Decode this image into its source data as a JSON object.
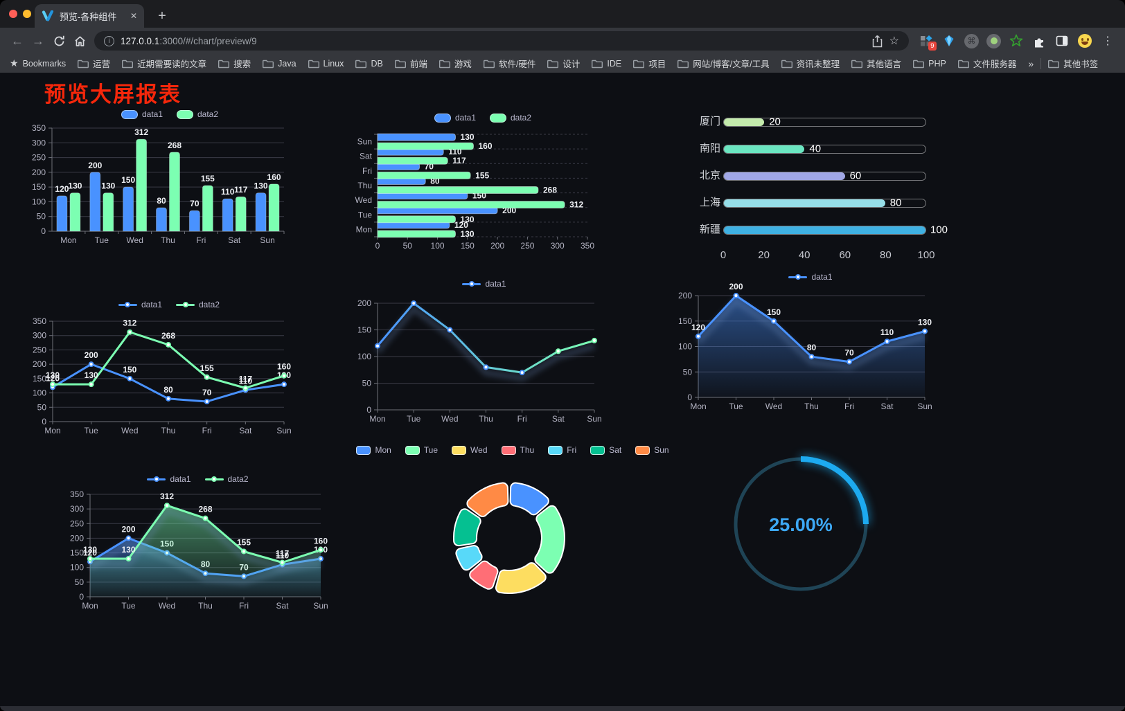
{
  "browser": {
    "tab": {
      "title": "预览-各种组件"
    },
    "url": {
      "host": "127.0.0.1",
      "rest": ":3000/#/chart/preview/9"
    },
    "ext_badge": "9",
    "glyphs": {
      "back": "←",
      "forward": "→",
      "newtab": "+",
      "close": "✕",
      "info": "i",
      "star": "☆",
      "bm_star": "★",
      "kebab": "⋮",
      "command": "⌘"
    },
    "bookmarks": {
      "label": "Bookmarks",
      "folders": [
        "运营",
        "近期需要读的文章",
        "搜索",
        "Java",
        "Linux",
        "DB",
        "前端",
        "游戏",
        "软件/硬件",
        "设计",
        "IDE",
        "项目",
        "网站/博客/文章/工具",
        "资讯未整理",
        "其他语言",
        "PHP",
        "文件服务器"
      ],
      "overflow": "»",
      "other": "其他书签"
    }
  },
  "page": {
    "title": "预览大屏报表",
    "title_color": "#f5270b"
  },
  "chart_data": [
    {
      "id": "bar-grouped",
      "type": "bar",
      "categories": [
        "Mon",
        "Tue",
        "Wed",
        "Thu",
        "Fri",
        "Sat",
        "Sun"
      ],
      "series": [
        {
          "name": "data1",
          "color": "#4992ff",
          "values": [
            120,
            200,
            150,
            80,
            70,
            110,
            130
          ]
        },
        {
          "name": "data2",
          "color": "#7cffb2",
          "values": [
            130,
            130,
            312,
            268,
            155,
            117,
            160
          ]
        }
      ],
      "ylim": [
        0,
        350
      ],
      "ystep": 50,
      "labels": true,
      "legend_position": "top"
    },
    {
      "id": "bar-horizontal",
      "type": "hbar",
      "categories_top_to_bottom": [
        "Sun",
        "Sat",
        "Fri",
        "Thu",
        "Wed",
        "Tue",
        "Mon"
      ],
      "series": [
        {
          "name": "data1",
          "color": "#4992ff",
          "values": [
            130,
            110,
            70,
            80,
            150,
            200,
            120
          ]
        },
        {
          "name": "data2",
          "color": "#7cffb2",
          "values": [
            160,
            117,
            155,
            268,
            312,
            130,
            130
          ]
        }
      ],
      "xlim": [
        0,
        350
      ],
      "xstep": 50,
      "labels": true,
      "legend_position": "top"
    },
    {
      "id": "capsule",
      "type": "capsule",
      "max": 100,
      "xticks": [
        0,
        20,
        40,
        60,
        80,
        100
      ],
      "items": [
        {
          "label": "厦门",
          "value": 20,
          "color": "#c4ebad"
        },
        {
          "label": "南阳",
          "value": 40,
          "color": "#6be6c1"
        },
        {
          "label": "北京",
          "value": 60,
          "color": "#a0a7e6"
        },
        {
          "label": "上海",
          "value": 80,
          "color": "#96dee8"
        },
        {
          "label": "新疆",
          "value": 100,
          "color": "#3fb1e3"
        }
      ]
    },
    {
      "id": "line-two",
      "type": "line",
      "categories": [
        "Mon",
        "Tue",
        "Wed",
        "Thu",
        "Fri",
        "Sat",
        "Sun"
      ],
      "series": [
        {
          "name": "data1",
          "color": "#4992ff",
          "values": [
            120,
            200,
            150,
            80,
            70,
            110,
            130
          ]
        },
        {
          "name": "data2",
          "color": "#7cffb2",
          "values": [
            130,
            130,
            312,
            268,
            155,
            117,
            160
          ]
        }
      ],
      "ylim": [
        0,
        350
      ],
      "ystep": 50,
      "labels": true,
      "legend_position": "top"
    },
    {
      "id": "line-gradient",
      "type": "line",
      "categories": [
        "Mon",
        "Tue",
        "Wed",
        "Thu",
        "Fri",
        "Sat",
        "Sun"
      ],
      "series": [
        {
          "name": "data1",
          "color": "#4992ff",
          "gradient": [
            "#4992ff",
            "#7cffb2"
          ],
          "values": [
            120,
            200,
            150,
            80,
            70,
            110,
            130
          ]
        }
      ],
      "ylim": [
        0,
        200
      ],
      "ystep": 50,
      "labels": false,
      "legend_position": "top"
    },
    {
      "id": "area-single",
      "type": "line",
      "categories": [
        "Mon",
        "Tue",
        "Wed",
        "Thu",
        "Fri",
        "Sat",
        "Sun"
      ],
      "series": [
        {
          "name": "data1",
          "color": "#4992ff",
          "area": true,
          "values": [
            120,
            200,
            150,
            80,
            70,
            110,
            130
          ]
        }
      ],
      "ylim": [
        0,
        200
      ],
      "ystep": 50,
      "labels": true,
      "legend_position": "top"
    },
    {
      "id": "area-two",
      "type": "line",
      "categories": [
        "Mon",
        "Tue",
        "Wed",
        "Thu",
        "Fri",
        "Sat",
        "Sun"
      ],
      "series": [
        {
          "name": "data1",
          "color": "#4992ff",
          "area": true,
          "values": [
            120,
            200,
            150,
            80,
            70,
            110,
            130
          ]
        },
        {
          "name": "data2",
          "color": "#7cffb2",
          "area": true,
          "values": [
            130,
            130,
            312,
            268,
            155,
            117,
            160
          ]
        }
      ],
      "ylim": [
        0,
        350
      ],
      "ystep": 50,
      "labels": true,
      "legend_position": "top"
    },
    {
      "id": "pie-week",
      "type": "pie",
      "items": [
        {
          "label": "Mon",
          "value": 120,
          "color": "#4992ff"
        },
        {
          "label": "Tue",
          "value": 200,
          "color": "#7cffb2"
        },
        {
          "label": "Wed",
          "value": 150,
          "color": "#fddd60"
        },
        {
          "label": "Thu",
          "value": 80,
          "color": "#ff6e76"
        },
        {
          "label": "Fri",
          "value": 70,
          "color": "#58d9f9"
        },
        {
          "label": "Sat",
          "value": 110,
          "color": "#05c091"
        },
        {
          "label": "Sun",
          "value": 130,
          "color": "#ff8a45"
        }
      ],
      "legend_position": "top"
    },
    {
      "id": "gauge",
      "type": "gauge",
      "value_pct": 25,
      "display": "25.00%",
      "color": "#1daaf0",
      "track_color": "#1f4456",
      "text_color": "#3da8f5"
    }
  ]
}
